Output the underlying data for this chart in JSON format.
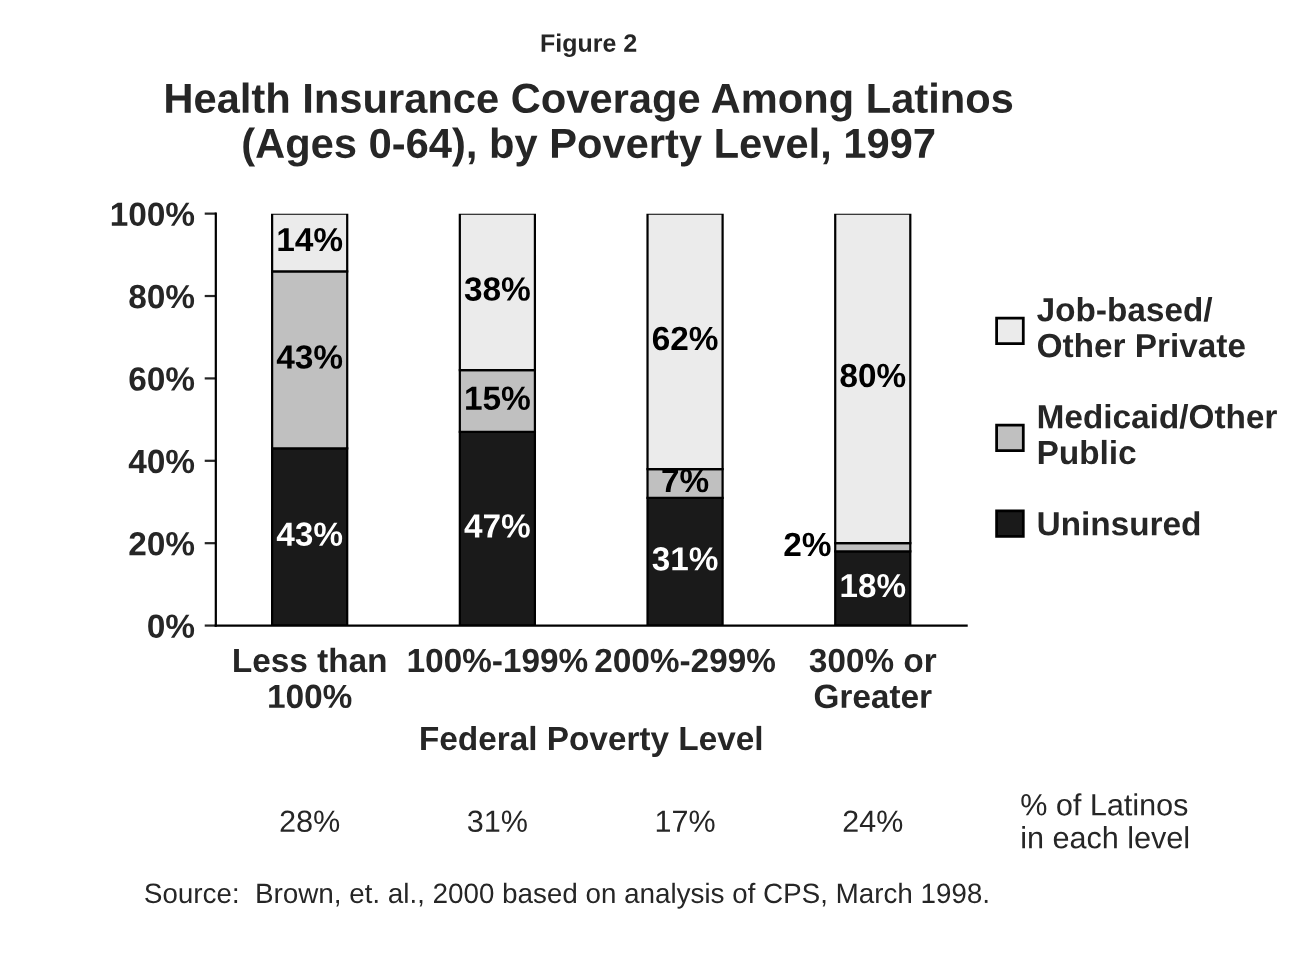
{
  "chart_data": {
    "type": "bar",
    "stacked": true,
    "title": "Health Insurance Coverage Among Latinos\n(Ages 0-64), by Poverty Level, 1997",
    "xlabel": "Federal Poverty Level",
    "categories": [
      "Less than\n100%",
      "100%-199%",
      "200%-299%",
      "300% or\nGreater"
    ],
    "series": [
      {
        "name": "Uninsured",
        "color": "#1a1a1a",
        "values": [
          43,
          47,
          31,
          18
        ],
        "value_labels": [
          "43%",
          "47%",
          "31%",
          "18%"
        ]
      },
      {
        "name": "Medicaid/Other\nPublic",
        "color": "#c0c0c0",
        "values": [
          43,
          15,
          7,
          2
        ],
        "value_labels": [
          "43%",
          "15%",
          "7%",
          "2%"
        ]
      },
      {
        "name": "Job-based/\nOther Private",
        "color": "#ebebeb",
        "values": [
          14,
          38,
          62,
          80
        ],
        "value_labels": [
          "14%",
          "38%",
          "62%",
          "80%"
        ]
      }
    ],
    "ylim": [
      0,
      100
    ],
    "yticks": [
      {
        "value": 0,
        "label": "0%"
      },
      {
        "value": 20,
        "label": "20%"
      },
      {
        "value": 40,
        "label": "40%"
      },
      {
        "value": 60,
        "label": "60%"
      },
      {
        "value": 80,
        "label": "80%"
      },
      {
        "value": 100,
        "label": "100%"
      }
    ],
    "legend": "right",
    "grid": false,
    "annotations": [
      "Figure 2",
      "28%",
      "31%",
      "17%",
      "24%",
      "% of Latinos\nin each level",
      "Source:  Brown, et. al., 2000 based on analysis of CPS, March 1998."
    ]
  }
}
